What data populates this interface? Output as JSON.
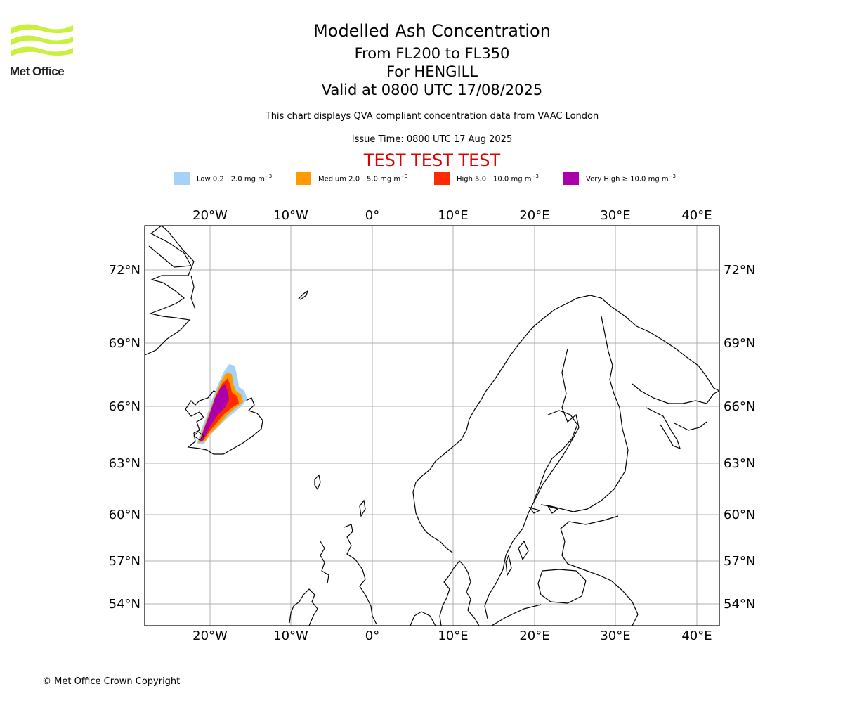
{
  "header": {
    "title": "Modelled Ash Concentration",
    "levels": "From FL200 to FL350",
    "volcano": "For HENGILL",
    "valid": "Valid at 0800 UTC 17/08/2025",
    "description": "This chart displays QVA compliant concentration data from VAAC London",
    "issue_time": "Issue Time: 0800 UTC 17 Aug 2025",
    "test_banner": "TEST TEST TEST"
  },
  "logo": {
    "text": "Met Office",
    "color": "#c8f03c"
  },
  "legend": [
    {
      "label": "Low 0.2 - 2.0 mg m",
      "color": "#a6d2f7"
    },
    {
      "label": "Medium 2.0 - 5.0 mg m",
      "color": "#ff9b00"
    },
    {
      "label": "High 5.0 - 10.0 mg m",
      "color": "#ff2a00"
    },
    {
      "label": "Very High ≥ 10.0 mg m",
      "color": "#aa00aa"
    }
  ],
  "legend_unit_exponent": "−3",
  "map": {
    "lon_ticks": [
      "20°W",
      "10°W",
      "0°",
      "10°E",
      "20°E",
      "30°E",
      "40°E"
    ],
    "lat_ticks": [
      "72°N",
      "69°N",
      "66°N",
      "63°N",
      "60°N",
      "57°N",
      "54°N"
    ],
    "gridlines": true
  },
  "footer": {
    "copyright": "© Met Office Crown Copyright"
  }
}
